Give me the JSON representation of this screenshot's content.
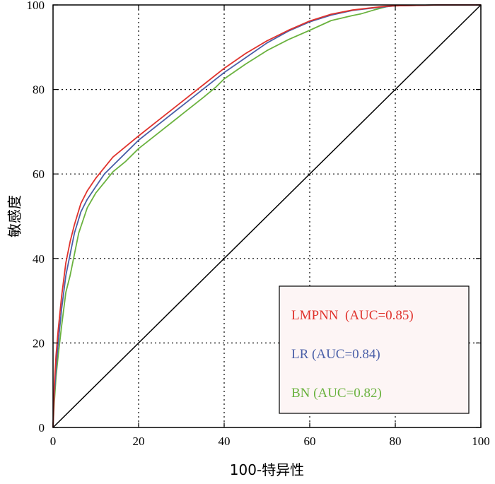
{
  "chart_data": {
    "type": "line",
    "xlabel": "100-特异性",
    "ylabel": "敏感度",
    "xlim": [
      0,
      100
    ],
    "ylim": [
      0,
      100
    ],
    "xticks": [
      "0",
      "20",
      "40",
      "60",
      "80",
      "100"
    ],
    "yticks": [
      "0",
      "20",
      "40",
      "60",
      "80",
      "100"
    ],
    "grid": true,
    "legend_position": "bottom-right",
    "series": [
      {
        "name": "LMPNN  (AUC=0.85)",
        "color": "#e0322c",
        "x": [
          0,
          0.3,
          0.7,
          1.2,
          2,
          3,
          4,
          5,
          6.5,
          8,
          10,
          12,
          14,
          17,
          20,
          25,
          30,
          35,
          40,
          45,
          50,
          55,
          60,
          65,
          70,
          75,
          78,
          80,
          85,
          90,
          95,
          100
        ],
        "y": [
          0,
          10,
          17,
          23,
          31,
          39,
          44,
          48,
          53,
          56,
          59,
          61.5,
          64,
          66.5,
          69,
          73,
          77,
          81,
          85,
          88.5,
          91.5,
          94,
          96.2,
          97.8,
          98.8,
          99.4,
          99.7,
          99.8,
          99.9,
          100,
          100,
          100
        ]
      },
      {
        "name": "LR (AUC=0.84)",
        "color": "#4a5fa8",
        "x": [
          0,
          0.3,
          0.7,
          1.2,
          2,
          3,
          4,
          5,
          6.5,
          8,
          10,
          12,
          14,
          17,
          20,
          25,
          30,
          35,
          40,
          45,
          50,
          55,
          60,
          65,
          70,
          75,
          78,
          80,
          85,
          90,
          95,
          100
        ],
        "y": [
          0,
          8,
          14,
          20,
          28,
          36,
          41,
          46,
          51,
          54,
          57,
          60,
          62,
          65,
          68,
          72,
          76,
          80,
          84,
          87.5,
          91,
          93.8,
          96,
          97.6,
          98.7,
          99.3,
          99.6,
          99.8,
          99.9,
          100,
          100,
          100
        ]
      },
      {
        "name": "BN (AUC=0.82)",
        "color": "#6ab23e",
        "x": [
          0,
          0.3,
          0.7,
          1.2,
          2,
          3,
          4,
          5,
          6,
          7,
          8,
          10,
          12,
          14,
          17,
          20,
          25,
          30,
          35,
          38,
          40,
          45,
          50,
          55,
          60,
          65,
          70,
          72,
          75,
          78,
          80,
          85,
          90,
          95,
          100
        ],
        "y": [
          0,
          6,
          12,
          17,
          24,
          32,
          36,
          41,
          46,
          49,
          52,
          55.5,
          58,
          60.5,
          63,
          66,
          70,
          74,
          78,
          80.5,
          82.5,
          86,
          89.2,
          91.8,
          94,
          96.3,
          97.5,
          97.9,
          98.8,
          99.6,
          99.8,
          99.9,
          100,
          100,
          100
        ]
      }
    ],
    "diagonal_color": "#000000"
  }
}
